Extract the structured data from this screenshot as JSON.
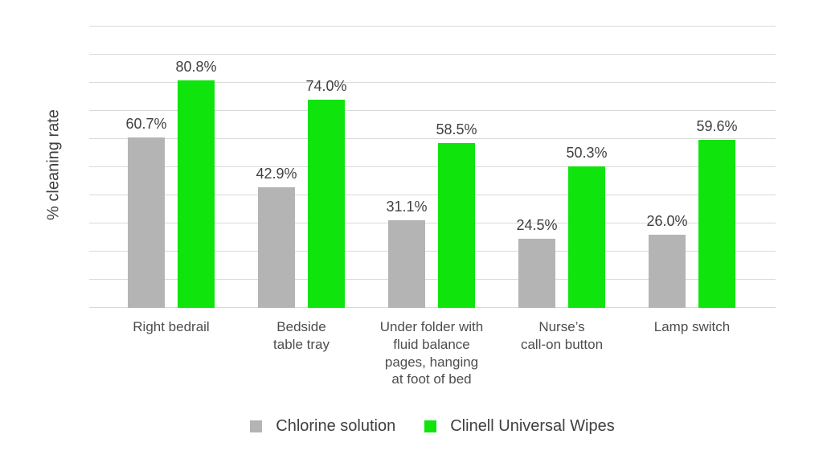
{
  "chart_data": {
    "type": "bar",
    "title": "",
    "xlabel": "",
    "ylabel": "% cleaning rate",
    "ylim": [
      0,
      100
    ],
    "gridline_step": 10,
    "grid": true,
    "legend_position": "bottom",
    "value_suffix": "%",
    "categories": [
      "Right bedrail",
      "Bedside\ntable tray",
      "Under folder with\nfluid balance\npages, hanging\nat foot of bed",
      "Nurse’s\ncall-on button",
      "Lamp switch"
    ],
    "series": [
      {
        "name": "Chlorine solution",
        "color": "#b4b4b4",
        "values": [
          60.7,
          42.9,
          31.1,
          24.5,
          26.0
        ],
        "labels": [
          "60.7%",
          "42.9%",
          "31.1%",
          "24.5%",
          "26.0%"
        ]
      },
      {
        "name": "Clinell Universal Wipes",
        "color": "#0fe40c",
        "values": [
          80.8,
          74.0,
          58.5,
          50.3,
          59.6
        ],
        "labels": [
          "80.8%",
          "74.0%",
          "58.5%",
          "50.3%",
          "59.6%"
        ]
      }
    ],
    "colors": {
      "gridline": "#d9d9d9",
      "value_text": "#404040",
      "category_text": "#4d4d4d",
      "background": "#ffffff"
    }
  }
}
